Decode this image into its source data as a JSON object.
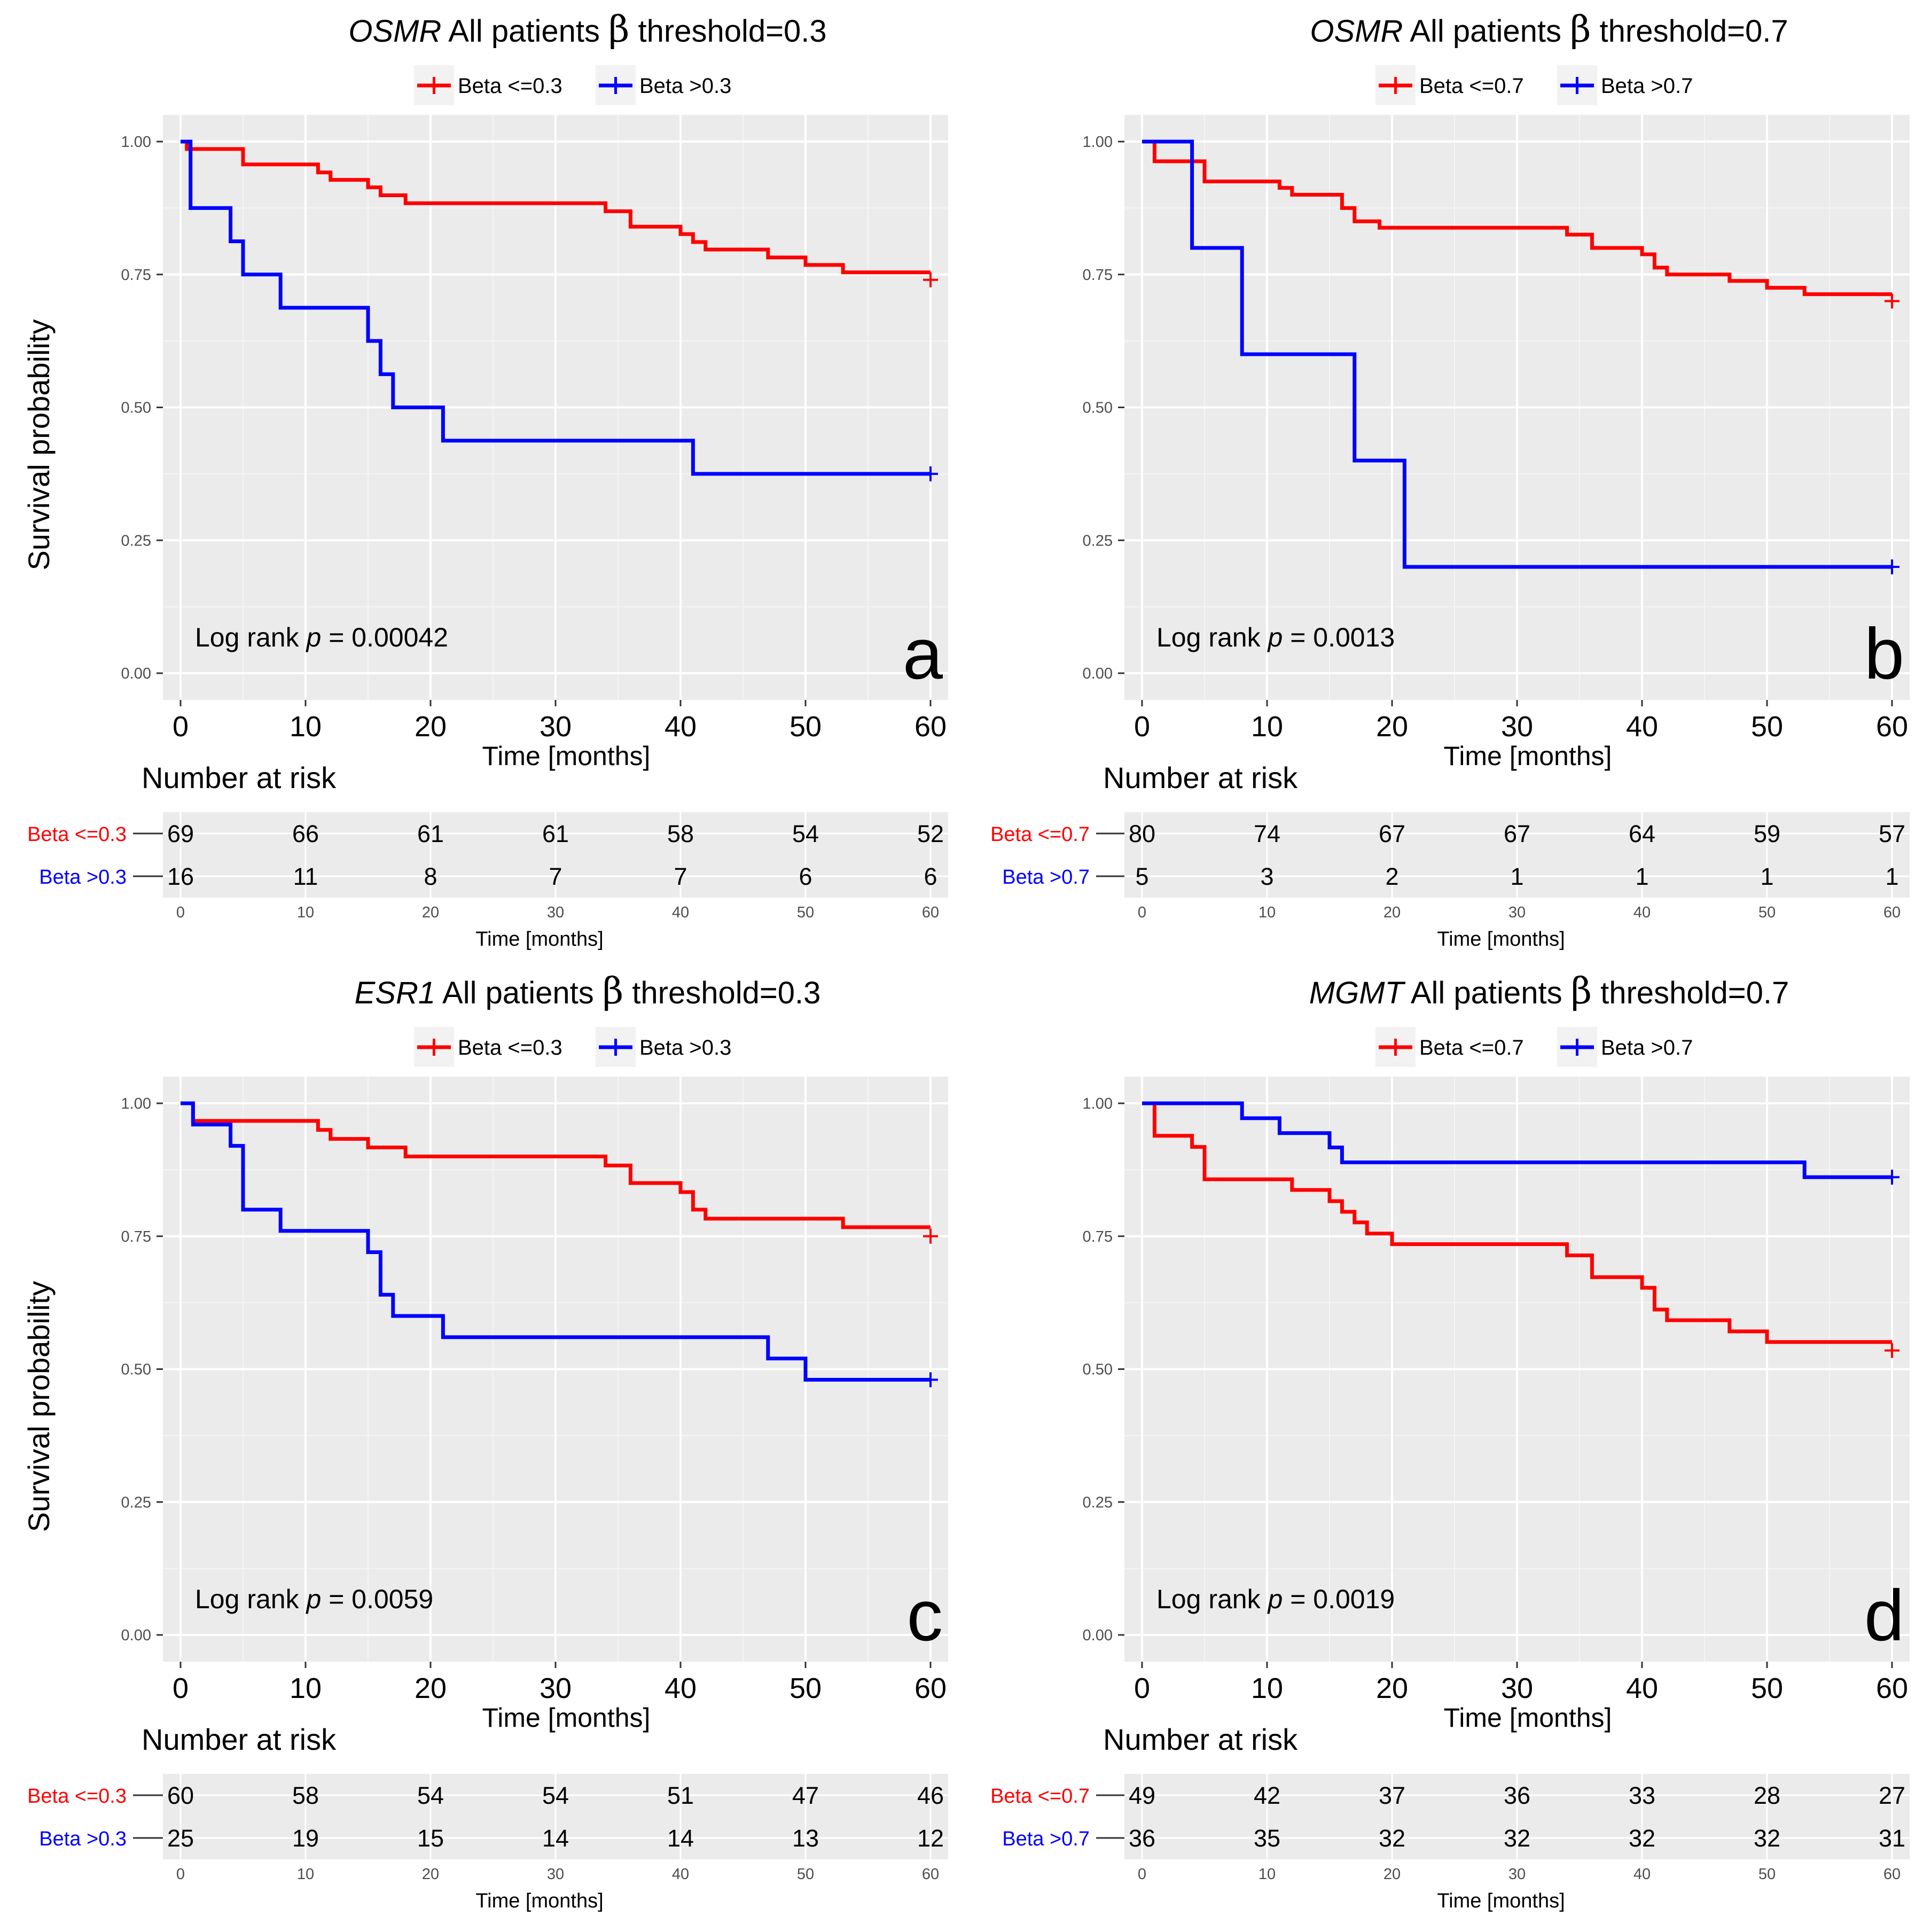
{
  "colors": {
    "low": "#ff0000",
    "high": "#0000ff",
    "panel_bg": "#ebebeb",
    "grid": "#ffffff",
    "text": "#000000",
    "axis_text": "#4d4d4d"
  },
  "chart_data": [
    {
      "id": "a",
      "type": "line",
      "gene": "OSMR",
      "title_rest": "All patients",
      "beta_symbol": "β",
      "threshold_label": "threshold=0.3",
      "legend": [
        "Beta <=0.3",
        "Beta  >0.3"
      ],
      "ylabel": "Survival probability",
      "xlabel": "Time [months]",
      "xticks": [
        "0",
        "10",
        "20",
        "30",
        "40",
        "50",
        "60"
      ],
      "yticks": [
        "0.00",
        "0.25",
        "0.50",
        "0.75",
        "1.00"
      ],
      "xlim": [
        0,
        60
      ],
      "ylim": [
        0,
        1
      ],
      "annotation": {
        "prefix": "Log  rank ",
        "p": "p",
        "value": " = 0.00042"
      },
      "panel_letter": "a",
      "series": [
        {
          "name": "Beta <=0.3",
          "color": "#ff0000",
          "steps": [
            [
              0,
              1.0
            ],
            [
              0.5,
              0.986
            ],
            [
              5,
              0.957
            ],
            [
              11,
              0.942
            ],
            [
              12,
              0.928
            ],
            [
              15,
              0.914
            ],
            [
              16,
              0.899
            ],
            [
              18,
              0.884
            ],
            [
              34,
              0.869
            ],
            [
              36,
              0.84
            ],
            [
              40,
              0.826
            ],
            [
              41,
              0.811
            ],
            [
              42,
              0.797
            ],
            [
              47,
              0.782
            ],
            [
              50,
              0.768
            ],
            [
              53,
              0.754
            ],
            [
              60,
              0.754
            ]
          ],
          "censor": [
            [
              60,
              0.74
            ]
          ]
        },
        {
          "name": "Beta  >0.3",
          "color": "#0000ff",
          "steps": [
            [
              0,
              1.0
            ],
            [
              0.8,
              0.875
            ],
            [
              4,
              0.8125
            ],
            [
              5,
              0.75
            ],
            [
              8,
              0.6875
            ],
            [
              15,
              0.625
            ],
            [
              16,
              0.5625
            ],
            [
              17,
              0.5
            ],
            [
              21,
              0.4375
            ],
            [
              41,
              0.375
            ],
            [
              60,
              0.375
            ]
          ],
          "censor": [
            [
              60,
              0.375
            ]
          ]
        }
      ],
      "risk_table": {
        "title": "Number at risk",
        "rows": [
          {
            "label": "Beta <=0.3",
            "values": [
              "69",
              "66",
              "61",
              "61",
              "58",
              "54",
              "52"
            ]
          },
          {
            "label": "Beta >0.3",
            "values": [
              "16",
              "11",
              "8",
              "7",
              "7",
              "6",
              "6"
            ]
          }
        ],
        "xlabel": "Time [months]",
        "xticks": [
          "0",
          "10",
          "20",
          "30",
          "40",
          "50",
          "60"
        ]
      }
    },
    {
      "id": "b",
      "type": "line",
      "gene": "OSMR",
      "title_rest": "All patients",
      "beta_symbol": "β",
      "threshold_label": "threshold=0.7",
      "legend": [
        "Beta <=0.7",
        "Beta  >0.7"
      ],
      "ylabel": "",
      "xlabel": "Time [months]",
      "xticks": [
        "0",
        "10",
        "20",
        "30",
        "40",
        "50",
        "60"
      ],
      "yticks": [
        "0.00",
        "0.25",
        "0.50",
        "0.75",
        "1.00"
      ],
      "xlim": [
        0,
        60
      ],
      "ylim": [
        0,
        1
      ],
      "annotation": {
        "prefix": "Log  rank ",
        "p": "p",
        "value": " = 0.0013"
      },
      "panel_letter": "b",
      "series": [
        {
          "name": "Beta <=0.7",
          "color": "#ff0000",
          "steps": [
            [
              0,
              1.0
            ],
            [
              1,
              0.963
            ],
            [
              5,
              0.925
            ],
            [
              11,
              0.913
            ],
            [
              12,
              0.9
            ],
            [
              16,
              0.875
            ],
            [
              17,
              0.85
            ],
            [
              19,
              0.838
            ],
            [
              34,
              0.825
            ],
            [
              36,
              0.8
            ],
            [
              40,
              0.788
            ],
            [
              41,
              0.763
            ],
            [
              42,
              0.75
            ],
            [
              47,
              0.738
            ],
            [
              50,
              0.725
            ],
            [
              53,
              0.713
            ],
            [
              60,
              0.713
            ]
          ],
          "censor": [
            [
              60,
              0.7
            ]
          ]
        },
        {
          "name": "Beta  >0.7",
          "color": "#0000ff",
          "steps": [
            [
              0,
              1.0
            ],
            [
              4,
              0.8
            ],
            [
              8,
              0.6
            ],
            [
              17,
              0.4
            ],
            [
              21,
              0.2
            ],
            [
              60,
              0.2
            ]
          ],
          "censor": [
            [
              60,
              0.2
            ]
          ]
        }
      ],
      "risk_table": {
        "title": "Number at risk",
        "rows": [
          {
            "label": "Beta <=0.7",
            "values": [
              "80",
              "74",
              "67",
              "67",
              "64",
              "59",
              "57"
            ]
          },
          {
            "label": "Beta >0.7",
            "values": [
              "5",
              "3",
              "2",
              "1",
              "1",
              "1",
              "1"
            ]
          }
        ],
        "xlabel": "Time [months]",
        "xticks": [
          "0",
          "10",
          "20",
          "30",
          "40",
          "50",
          "60"
        ]
      }
    },
    {
      "id": "c",
      "type": "line",
      "gene": "ESR1",
      "title_rest": "All patients",
      "beta_symbol": "β",
      "threshold_label": "threshold=0.3",
      "legend": [
        "Beta <=0.3",
        "Beta  >0.3"
      ],
      "ylabel": "Survival probability",
      "xlabel": "Time [months]",
      "xticks": [
        "0",
        "10",
        "20",
        "30",
        "40",
        "50",
        "60"
      ],
      "yticks": [
        "0.00",
        "0.25",
        "0.50",
        "0.75",
        "1.00"
      ],
      "xlim": [
        0,
        60
      ],
      "ylim": [
        0,
        1
      ],
      "annotation": {
        "prefix": "Log  rank ",
        "p": "p",
        "value": " = 0.0059"
      },
      "panel_letter": "c",
      "series": [
        {
          "name": "Beta <=0.3",
          "color": "#ff0000",
          "steps": [
            [
              0,
              1.0
            ],
            [
              1,
              0.967
            ],
            [
              11,
              0.95
            ],
            [
              12,
              0.933
            ],
            [
              15,
              0.917
            ],
            [
              18,
              0.9
            ],
            [
              34,
              0.883
            ],
            [
              36,
              0.85
            ],
            [
              40,
              0.833
            ],
            [
              41,
              0.8
            ],
            [
              42,
              0.783
            ],
            [
              53,
              0.767
            ],
            [
              60,
              0.767
            ]
          ],
          "censor": [
            [
              60,
              0.75
            ]
          ]
        },
        {
          "name": "Beta  >0.3",
          "color": "#0000ff",
          "steps": [
            [
              0,
              1.0
            ],
            [
              1,
              0.96
            ],
            [
              4,
              0.92
            ],
            [
              5,
              0.8
            ],
            [
              8,
              0.76
            ],
            [
              15,
              0.72
            ],
            [
              16,
              0.64
            ],
            [
              17,
              0.6
            ],
            [
              21,
              0.56
            ],
            [
              47,
              0.52
            ],
            [
              50,
              0.48
            ],
            [
              60,
              0.48
            ]
          ],
          "censor": [
            [
              60,
              0.48
            ]
          ]
        }
      ],
      "risk_table": {
        "title": "Number at risk",
        "rows": [
          {
            "label": "Beta <=0.3",
            "values": [
              "60",
              "58",
              "54",
              "54",
              "51",
              "47",
              "46"
            ]
          },
          {
            "label": "Beta >0.3",
            "values": [
              "25",
              "19",
              "15",
              "14",
              "14",
              "13",
              "12"
            ]
          }
        ],
        "xlabel": "Time [months]",
        "xticks": [
          "0",
          "10",
          "20",
          "30",
          "40",
          "50",
          "60"
        ]
      }
    },
    {
      "id": "d",
      "type": "line",
      "gene": "MGMT",
      "title_rest": "All patients",
      "beta_symbol": "β",
      "threshold_label": "threshold=0.7",
      "legend": [
        "Beta <=0.7",
        "Beta  >0.7"
      ],
      "ylabel": "",
      "xlabel": "Time [months]",
      "xticks": [
        "0",
        "10",
        "20",
        "30",
        "40",
        "50",
        "60"
      ],
      "yticks": [
        "0.00",
        "0.25",
        "0.50",
        "0.75",
        "1.00"
      ],
      "xlim": [
        0,
        60
      ],
      "ylim": [
        0,
        1
      ],
      "annotation": {
        "prefix": "Log  rank ",
        "p": "p",
        "value": " = 0.0019"
      },
      "panel_letter": "d",
      "series": [
        {
          "name": "Beta <=0.7",
          "color": "#ff0000",
          "steps": [
            [
              0,
              1.0
            ],
            [
              1,
              0.939
            ],
            [
              4,
              0.918
            ],
            [
              5,
              0.857
            ],
            [
              12,
              0.837
            ],
            [
              15,
              0.816
            ],
            [
              16,
              0.796
            ],
            [
              17,
              0.776
            ],
            [
              18,
              0.755
            ],
            [
              20,
              0.735
            ],
            [
              34,
              0.714
            ],
            [
              36,
              0.673
            ],
            [
              40,
              0.653
            ],
            [
              41,
              0.612
            ],
            [
              42,
              0.592
            ],
            [
              47,
              0.571
            ],
            [
              50,
              0.551
            ],
            [
              60,
              0.551
            ]
          ],
          "censor": [
            [
              60,
              0.535
            ]
          ]
        },
        {
          "name": "Beta  >0.7",
          "color": "#0000ff",
          "steps": [
            [
              0,
              1.0
            ],
            [
              8,
              0.972
            ],
            [
              11,
              0.944
            ],
            [
              15,
              0.917
            ],
            [
              16,
              0.889
            ],
            [
              53,
              0.861
            ],
            [
              60,
              0.861
            ]
          ],
          "censor": [
            [
              60,
              0.861
            ]
          ]
        }
      ],
      "risk_table": {
        "title": "Number at risk",
        "rows": [
          {
            "label": "Beta <=0.7",
            "values": [
              "49",
              "42",
              "37",
              "36",
              "33",
              "28",
              "27"
            ]
          },
          {
            "label": "Beta >0.7",
            "values": [
              "36",
              "35",
              "32",
              "32",
              "32",
              "32",
              "31"
            ]
          }
        ],
        "xlabel": "Time [months]",
        "xticks": [
          "0",
          "10",
          "20",
          "30",
          "40",
          "50",
          "60"
        ]
      }
    }
  ]
}
